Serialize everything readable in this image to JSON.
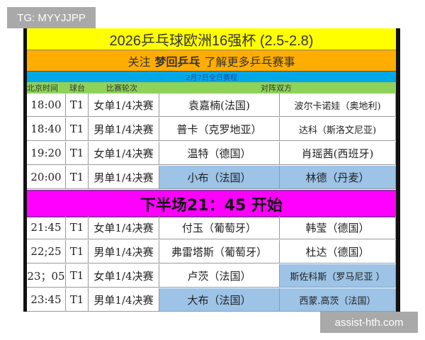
{
  "watermark_top": "TG: MYYJJPP",
  "watermark_bottom": "assist-hth.com",
  "title": "2026乒乓球欧洲16强杯  (2.5-2.8)",
  "subtitle": {
    "pre": "关注",
    "bold": "梦回乒乓",
    "post": "了解更多乒乓赛事"
  },
  "date_label": "2月7日全日赛程",
  "headers": [
    "北京时间",
    "球台",
    "比赛轮次",
    "对阵双方"
  ],
  "break_banner": "下半场21：45 开始",
  "highlight_color": "#9dc3e6",
  "rows_first": [
    {
      "time": "18:00",
      "table": "T1",
      "round": "女单1/4决赛",
      "p1": "袁嘉楠(法国)",
      "p2": "波尔卡诺娃（奥地利)",
      "hl1": false,
      "hl2": false
    },
    {
      "time": "18:40",
      "table": "T1",
      "round": "男单1/4决赛",
      "p1": "普卡（克罗地亚）",
      "p2": "达科（斯洛文尼亚)",
      "hl1": false,
      "hl2": false
    },
    {
      "time": "19:20",
      "table": "T1",
      "round": "女单1/4决赛",
      "p1": "温特（德国）",
      "p2": "肖瑶茜(西班牙)",
      "hl1": false,
      "hl2": false
    },
    {
      "time": "20:00",
      "table": "T1",
      "round": "男单1/4决赛",
      "p1": "小布（法国）",
      "p2": "林德（丹麦）",
      "hl1": true,
      "hl2": true
    }
  ],
  "rows_second": [
    {
      "time": "21:45",
      "table": "T1",
      "round": "女单1/4决赛",
      "p1": "付玉（葡萄牙）",
      "p2": "韩莹（德国）",
      "hl1": false,
      "hl2": false
    },
    {
      "time": "22;25",
      "table": "T1",
      "round": "男单1/4决赛",
      "p1": "弗雷塔斯（葡萄牙）",
      "p2": "杜达（德国）",
      "hl1": false,
      "hl2": false
    },
    {
      "time": "23；05",
      "table": "T1",
      "round": "女单1/4决赛",
      "p1": "卢茨（法国）",
      "p2": "斯佐科斯（罗马尼亚 ）",
      "hl1": false,
      "hl2": true
    },
    {
      "time": "23:45",
      "table": "T1",
      "round": "男单1/4决赛",
      "p1": "大布（法国）",
      "p2": "西蒙.高茨（法国）",
      "hl1": true,
      "hl2": true
    }
  ]
}
